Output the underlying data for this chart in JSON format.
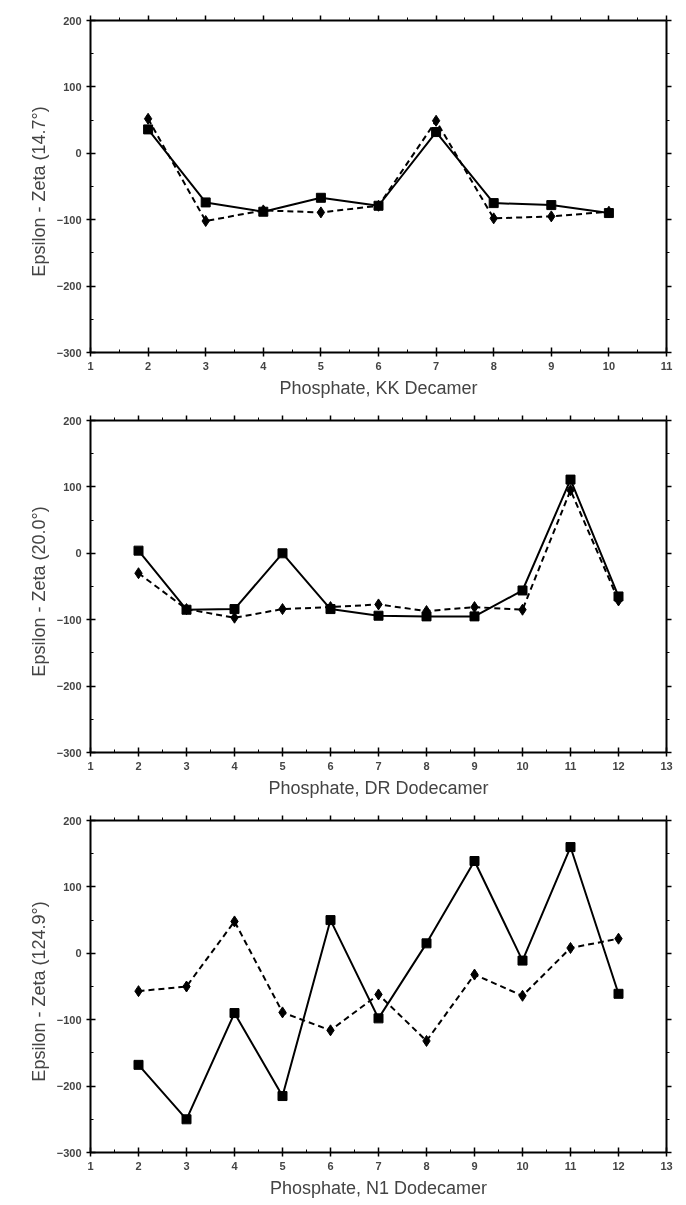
{
  "chart_data": [
    {
      "type": "line",
      "xlabel": "Phosphate, KK Decamer",
      "ylabel": "Epsilon  -  Zeta (14.7°)",
      "x": [
        2,
        3,
        4,
        5,
        6,
        7,
        8,
        9,
        10
      ],
      "xlim": [
        1,
        11
      ],
      "xticks": [
        1,
        2,
        3,
        4,
        5,
        6,
        7,
        8,
        9,
        10,
        11
      ],
      "ylim": [
        -300,
        200
      ],
      "yticks": [
        -300,
        -200,
        -100,
        0,
        100,
        200
      ],
      "series": [
        {
          "color": "#000000",
          "marker": "square",
          "line_style": "solid",
          "values": [
            36,
            -74,
            -88,
            -67,
            -79,
            32,
            -75,
            -78,
            -90
          ]
        },
        {
          "color": "#000000",
          "marker": "diamond",
          "line_style": "dashed",
          "values": [
            52,
            -102,
            -86,
            -89,
            -79,
            49,
            -98,
            -95,
            -88
          ]
        }
      ]
    },
    {
      "type": "line",
      "xlabel": "Phosphate, DR Dodecamer",
      "ylabel": "Epsilon  -  Zeta (20.0°)",
      "x": [
        2,
        3,
        4,
        5,
        6,
        7,
        8,
        9,
        10,
        11,
        12
      ],
      "xlim": [
        1,
        13
      ],
      "xticks": [
        1,
        2,
        3,
        4,
        5,
        6,
        7,
        8,
        9,
        10,
        11,
        12,
        13
      ],
      "ylim": [
        -300,
        200
      ],
      "yticks": [
        -300,
        -200,
        -100,
        0,
        100,
        200
      ],
      "series": [
        {
          "color": "#000000",
          "marker": "square",
          "line_style": "solid",
          "values": [
            4,
            -85,
            -84,
            0,
            -84,
            -94,
            -95,
            -95,
            -56,
            111,
            -65
          ]
        },
        {
          "color": "#000000",
          "marker": "diamond",
          "line_style": "dashed",
          "values": [
            -30,
            -84,
            -97,
            -84,
            -81,
            -77,
            -87,
            -81,
            -85,
            95,
            -71
          ]
        }
      ]
    },
    {
      "type": "line",
      "xlabel": "Phosphate, N1 Dodecamer",
      "ylabel": "Epsilon  -  Zeta (124.9°)",
      "x": [
        2,
        3,
        4,
        5,
        6,
        7,
        8,
        9,
        10,
        11,
        12
      ],
      "xlim": [
        1,
        13
      ],
      "xticks": [
        1,
        2,
        3,
        4,
        5,
        6,
        7,
        8,
        9,
        10,
        11,
        12,
        13
      ],
      "ylim": [
        -300,
        200
      ],
      "yticks": [
        -300,
        -200,
        -100,
        0,
        100,
        200
      ],
      "series": [
        {
          "color": "#000000",
          "marker": "square",
          "line_style": "solid",
          "values": [
            -168,
            -250,
            -90,
            -215,
            50,
            -98,
            15,
            139,
            -11,
            160,
            -61
          ]
        },
        {
          "color": "#000000",
          "marker": "diamond",
          "line_style": "dashed",
          "values": [
            -57,
            -50,
            48,
            -89,
            -116,
            -62,
            -132,
            -32,
            -64,
            8,
            22
          ]
        }
      ]
    }
  ]
}
